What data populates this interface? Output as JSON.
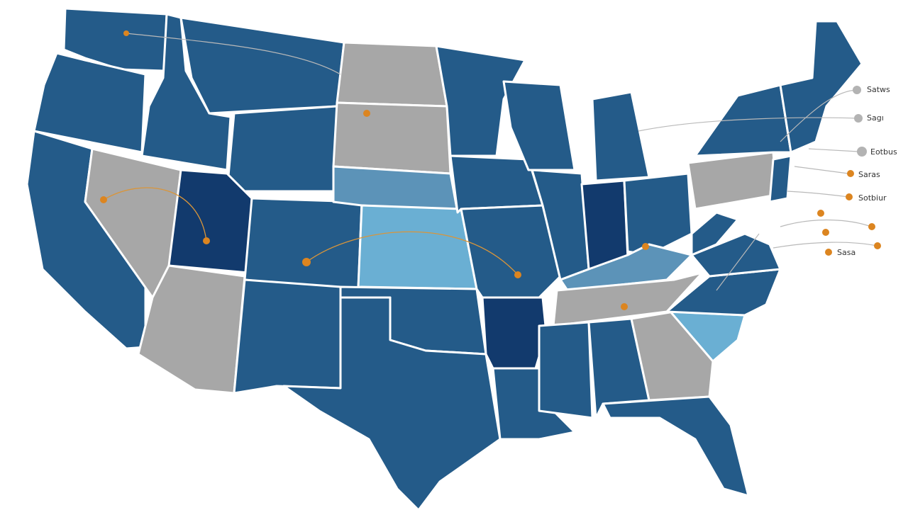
{
  "labels": [
    "Satws",
    "Sagı",
    "Eotbus",
    "Saras",
    "Sotbiur",
    "Sasa"
  ]
}
